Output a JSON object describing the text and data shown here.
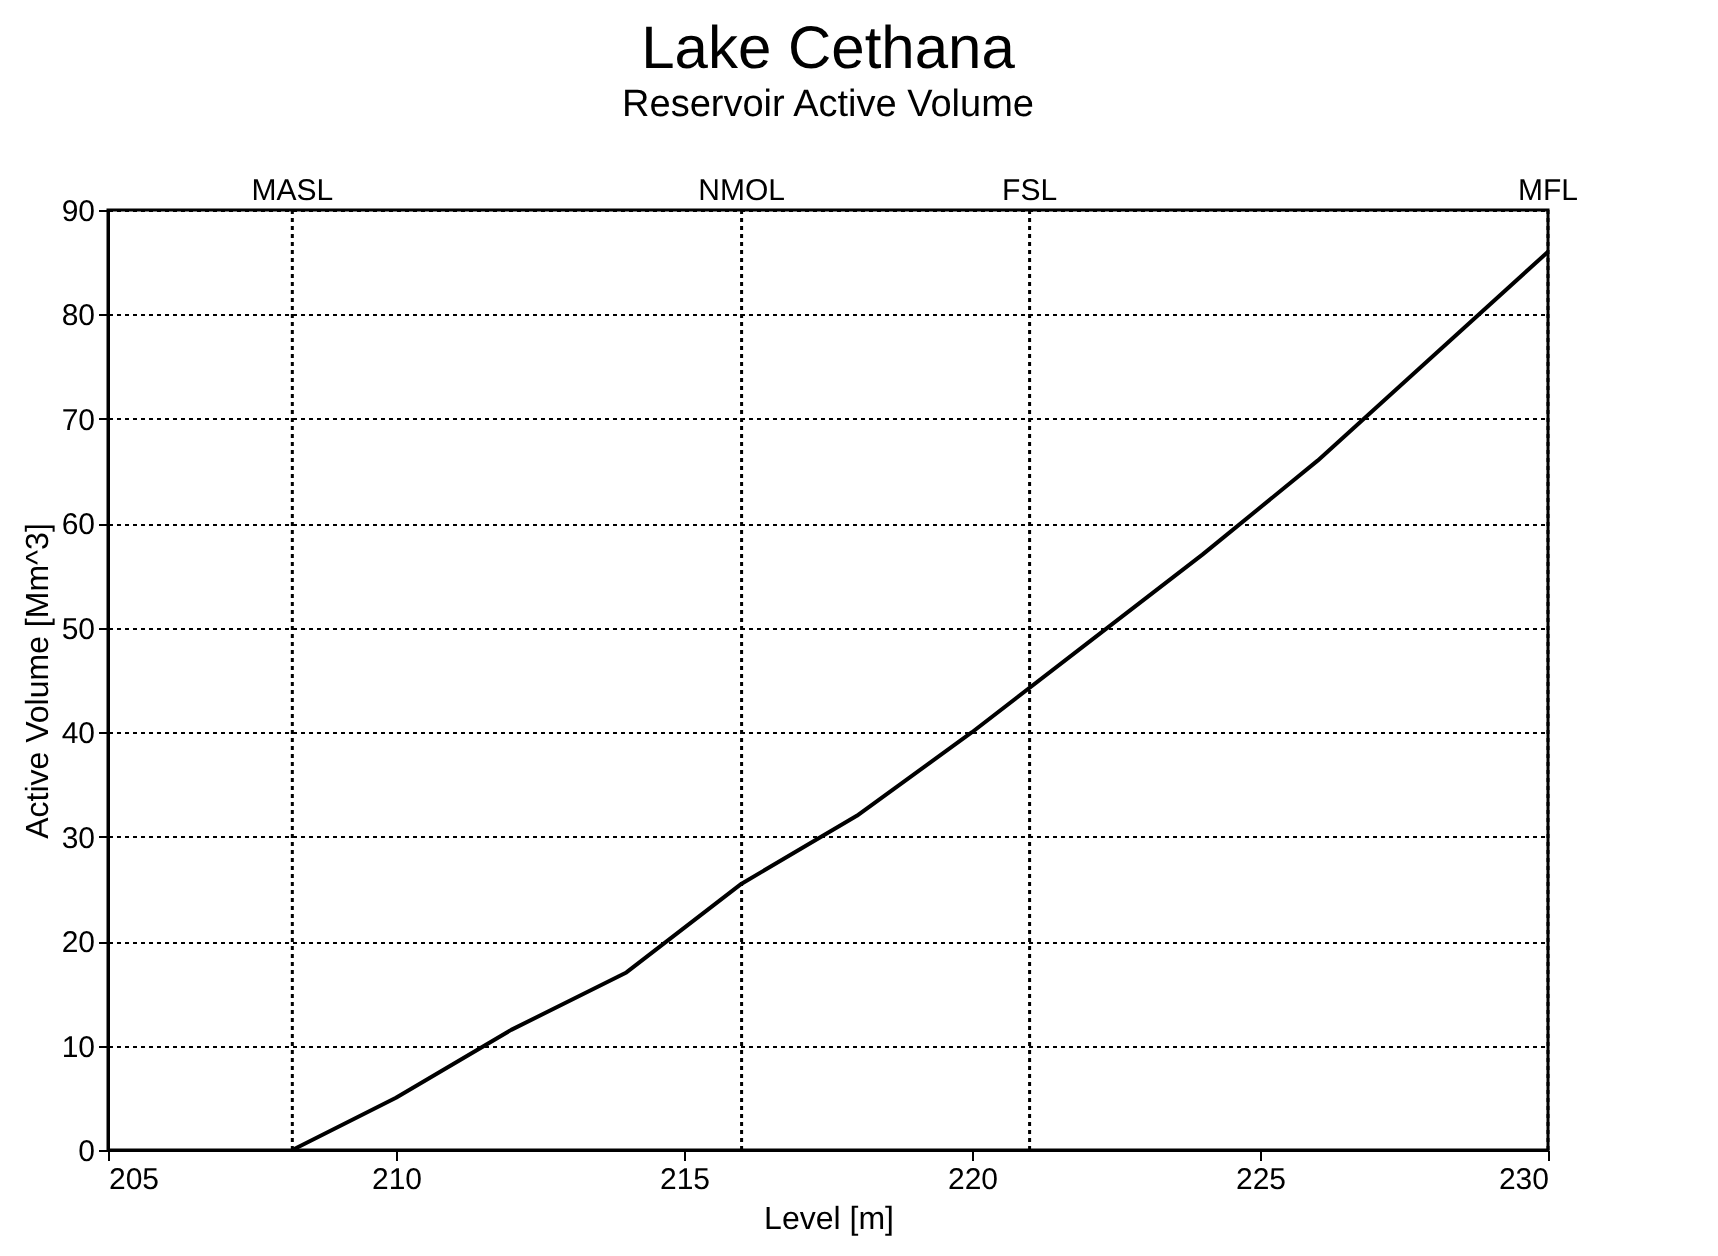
{
  "chart_data": {
    "type": "line",
    "title": "Lake Cethana",
    "subtitle": "Reservoir Active Volume",
    "xlabel": "Level  [m]",
    "ylabel": "Active Volume  [Mm^3]",
    "x": [
      208.2,
      210,
      212,
      214,
      216,
      218,
      220,
      222,
      224,
      226,
      228,
      230
    ],
    "series": [
      {
        "color": "#000000",
        "values": [
          0,
          5,
          11.5,
          17,
          25.5,
          32,
          40,
          48.5,
          57,
          66,
          76,
          86
        ]
      }
    ],
    "xlim": [
      205,
      230
    ],
    "xticks": [
      205,
      210,
      215,
      220,
      225,
      230
    ],
    "ylim": [
      0,
      90
    ],
    "yticks": [
      0,
      10,
      20,
      30,
      40,
      50,
      60,
      70,
      80,
      90
    ],
    "grid": "y",
    "marker": "none",
    "line_style": "solid",
    "ref_lines": [
      {
        "axis": "x",
        "value": 208.2,
        "label": "MASL",
        "color": "#000000",
        "line_style": "dotted"
      },
      {
        "axis": "x",
        "value": 216,
        "label": "NMOL",
        "color": "#000000",
        "line_style": "dotted"
      },
      {
        "axis": "x",
        "value": 221,
        "label": "FSL",
        "color": "#000000",
        "line_style": "dotted"
      },
      {
        "axis": "x",
        "value": 230,
        "label": "MFL",
        "color": "#000000",
        "line_style": "dotted"
      }
    ]
  }
}
